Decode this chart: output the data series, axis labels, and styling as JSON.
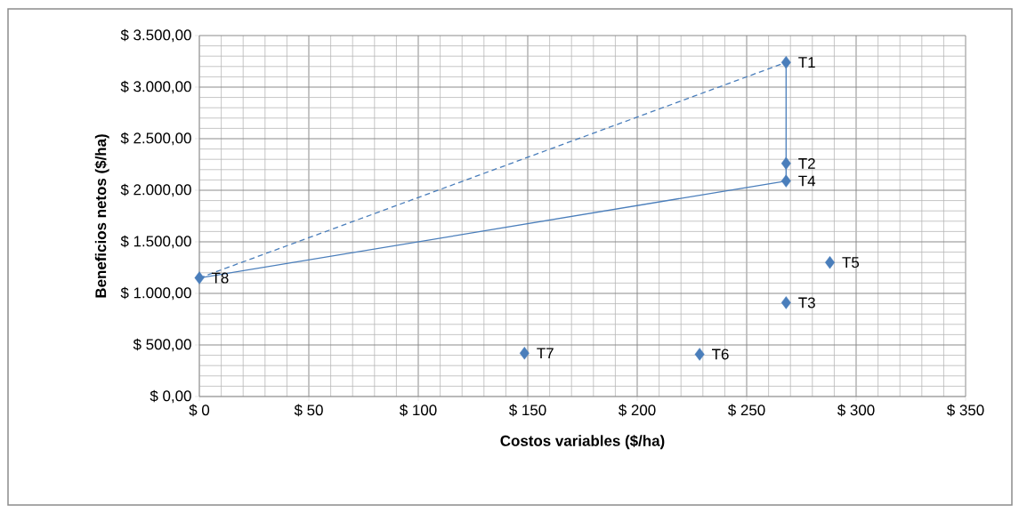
{
  "chart_data": {
    "type": "scatter",
    "xlabel": "Costos variables ($/ha)",
    "ylabel": "Beneficios netos ($/ha)",
    "xlim": [
      0,
      350
    ],
    "ylim": [
      0,
      3500
    ],
    "xticks": [
      {
        "value": 0,
        "label": "$ 0"
      },
      {
        "value": 50,
        "label": "$ 50"
      },
      {
        "value": 100,
        "label": "$ 100"
      },
      {
        "value": 150,
        "label": "$ 150"
      },
      {
        "value": 200,
        "label": "$ 200"
      },
      {
        "value": 250,
        "label": "$ 250"
      },
      {
        "value": 300,
        "label": "$ 300"
      },
      {
        "value": 350,
        "label": "$ 350"
      }
    ],
    "yticks": [
      {
        "value": 0,
        "label": "$ 0,00"
      },
      {
        "value": 500,
        "label": "$ 500,00"
      },
      {
        "value": 1000,
        "label": "$ 1.000,00"
      },
      {
        "value": 1500,
        "label": "$ 1.500,00"
      },
      {
        "value": 2000,
        "label": "$ 2.000,00"
      },
      {
        "value": 2500,
        "label": "$ 2.500,00"
      },
      {
        "value": 3000,
        "label": "$ 3.000,00"
      },
      {
        "value": 3500,
        "label": "$ 3.500,00"
      }
    ],
    "grid": true,
    "series": [
      {
        "type": "line",
        "color": "#4a7ebb",
        "line_style": "solid",
        "marker": "none",
        "x": [
          0,
          268,
          268
        ],
        "values": [
          1150,
          2090,
          3240
        ]
      },
      {
        "type": "line",
        "color": "#4a7ebb",
        "line_style": "dashed",
        "marker": "none",
        "x": [
          0,
          268
        ],
        "values": [
          1150,
          3240
        ]
      },
      {
        "color": "#4a7ebb",
        "marker": "diamond",
        "x": [
          268,
          268,
          268,
          268,
          288,
          228.5,
          148.5,
          0
        ],
        "values": [
          3240,
          2260,
          910,
          2090,
          1300,
          410,
          420,
          1150
        ]
      }
    ],
    "annotations": [
      {
        "text": "T1",
        "x": 268,
        "y": 3240
      },
      {
        "text": "T2",
        "x": 268,
        "y": 2260
      },
      {
        "text": "T3",
        "x": 268,
        "y": 910
      },
      {
        "text": "T4",
        "x": 268,
        "y": 2090
      },
      {
        "text": "T5",
        "x": 288,
        "y": 1300
      },
      {
        "text": "T6",
        "x": 228.5,
        "y": 410
      },
      {
        "text": "T7",
        "x": 148.5,
        "y": 420
      },
      {
        "text": "T8",
        "x": 0,
        "y": 1150
      }
    ]
  }
}
